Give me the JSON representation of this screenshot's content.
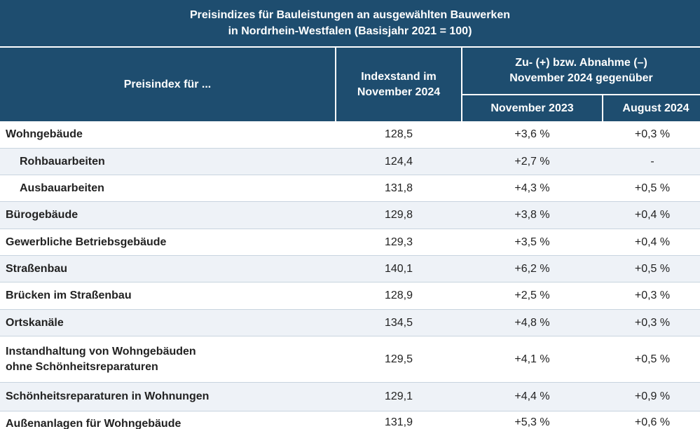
{
  "title": {
    "line1": "Preisindizes für Bauleistungen an ausgewählten Bauwerken",
    "line2": "in Nordrhein-Westfalen (Basisjahr 2021 = 100)"
  },
  "header": {
    "label": "Preisindex für ...",
    "index_line1": "Indexstand im",
    "index_line2": "November 2024",
    "change_line1": "Zu- (+) bzw. Abnahme (–)",
    "change_line2": "November 2024 gegenüber",
    "nov": "November 2023",
    "aug": "August 2024"
  },
  "rows": [
    {
      "label": "Wohngebäude",
      "index": "128,5",
      "nov": "+3,6 %",
      "aug": "+0,3 %"
    },
    {
      "label": "Rohbauarbeiten",
      "index": "124,4",
      "nov": "+2,7 %",
      "aug": "-"
    },
    {
      "label": "Ausbauarbeiten",
      "index": "131,8",
      "nov": "+4,3 %",
      "aug": "+0,5 %"
    },
    {
      "label": "Bürogebäude",
      "index": "129,8",
      "nov": "+3,8 %",
      "aug": "+0,4 %"
    },
    {
      "label": "Gewerbliche Betriebsgebäude",
      "index": "129,3",
      "nov": "+3,5 %",
      "aug": "+0,4 %"
    },
    {
      "label": "Straßenbau",
      "index": "140,1",
      "nov": "+6,2 %",
      "aug": "+0,5 %"
    },
    {
      "label": "Brücken im Straßenbau",
      "index": "128,9",
      "nov": "+2,5 %",
      "aug": "+0,3 %"
    },
    {
      "label": "Ortskanäle",
      "index": "134,5",
      "nov": "+4,8 %",
      "aug": "+0,3 %"
    },
    {
      "label": "Instandhaltung von Wohngebäuden",
      "label2": "ohne Schönheitsreparaturen",
      "index": "129,5",
      "nov": "+4,1 %",
      "aug": "+0,5 %"
    },
    {
      "label": "Schönheitsreparaturen in Wohnungen",
      "index": "129,1",
      "nov": "+4,4 %",
      "aug": "+0,9 %"
    },
    {
      "label": "Außenanlagen für Wohngebäude",
      "index": "131,9",
      "nov": "+5,3 %",
      "aug": "+0,6 %"
    }
  ]
}
